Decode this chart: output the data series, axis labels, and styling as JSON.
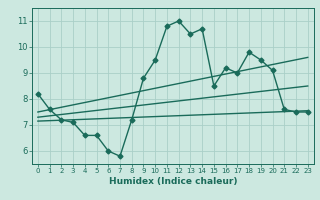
{
  "title": "",
  "xlabel": "Humidex (Indice chaleur)",
  "ylabel": "",
  "background_color": "#cce8e0",
  "grid_color": "#aacfc8",
  "line_color": "#1a6b5a",
  "xlim": [
    -0.5,
    23.5
  ],
  "ylim": [
    5.5,
    11.5
  ],
  "xticks": [
    0,
    1,
    2,
    3,
    4,
    5,
    6,
    7,
    8,
    9,
    10,
    11,
    12,
    13,
    14,
    15,
    16,
    17,
    18,
    19,
    20,
    21,
    22,
    23
  ],
  "yticks": [
    6,
    7,
    8,
    9,
    10,
    11
  ],
  "series": [
    {
      "x": [
        0,
        1,
        2,
        3,
        4,
        5,
        6,
        7,
        8,
        9,
        10,
        11,
        12,
        13,
        14,
        15,
        16,
        17,
        18,
        19,
        20,
        21,
        22,
        23
      ],
      "y": [
        8.2,
        7.6,
        7.2,
        7.1,
        6.6,
        6.6,
        6.0,
        5.8,
        7.2,
        8.8,
        9.5,
        10.8,
        11.0,
        10.5,
        10.7,
        8.5,
        9.2,
        9.0,
        9.8,
        9.5,
        9.1,
        7.6,
        7.5,
        7.5
      ],
      "marker": "D",
      "markersize": 2.5,
      "linewidth": 1.0
    },
    {
      "x": [
        0,
        23
      ],
      "y": [
        7.5,
        9.6
      ],
      "marker": null,
      "markersize": 0,
      "linewidth": 1.0
    },
    {
      "x": [
        0,
        23
      ],
      "y": [
        7.3,
        8.5
      ],
      "marker": null,
      "markersize": 0,
      "linewidth": 1.0
    },
    {
      "x": [
        0,
        23
      ],
      "y": [
        7.15,
        7.55
      ],
      "marker": null,
      "markersize": 0,
      "linewidth": 1.0
    }
  ]
}
